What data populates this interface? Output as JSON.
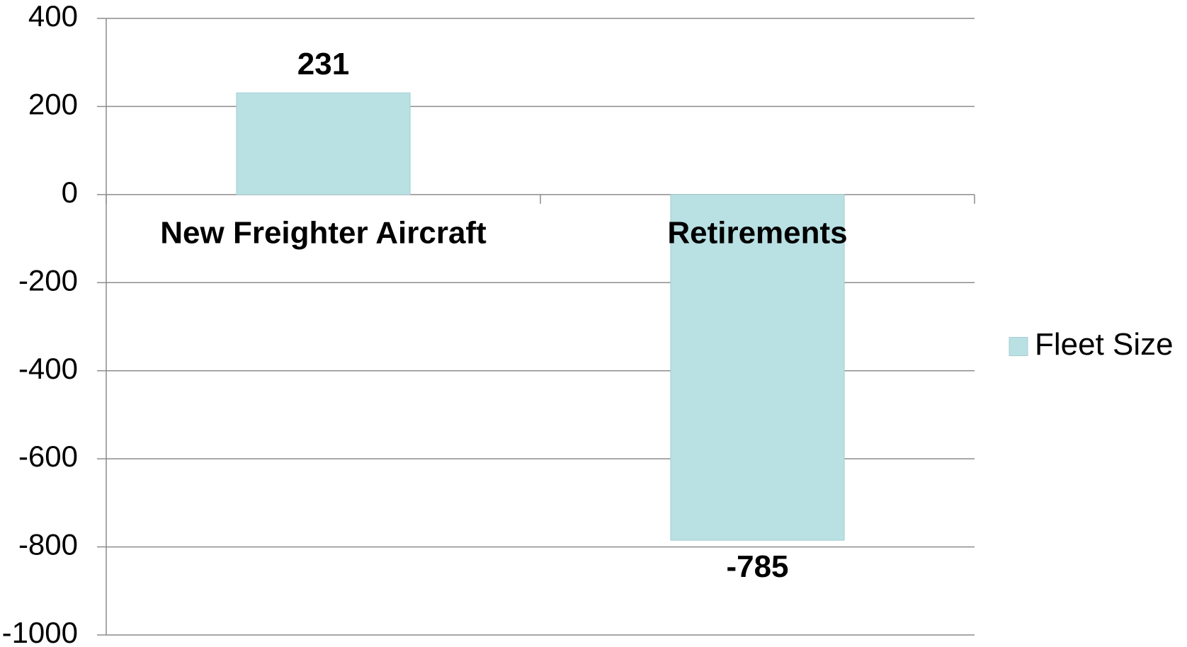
{
  "chart_data": {
    "type": "bar",
    "categories": [
      "New Freighter Aircraft",
      "Retirements"
    ],
    "series": [
      {
        "name": "Fleet Size",
        "color": "#b9e0e3",
        "values": [
          231,
          -785
        ]
      }
    ],
    "ylim": [
      -1000,
      400
    ],
    "yticks": [
      -1000,
      -800,
      -600,
      -400,
      -200,
      0,
      200,
      400
    ],
    "grid": true,
    "legend": "right"
  }
}
